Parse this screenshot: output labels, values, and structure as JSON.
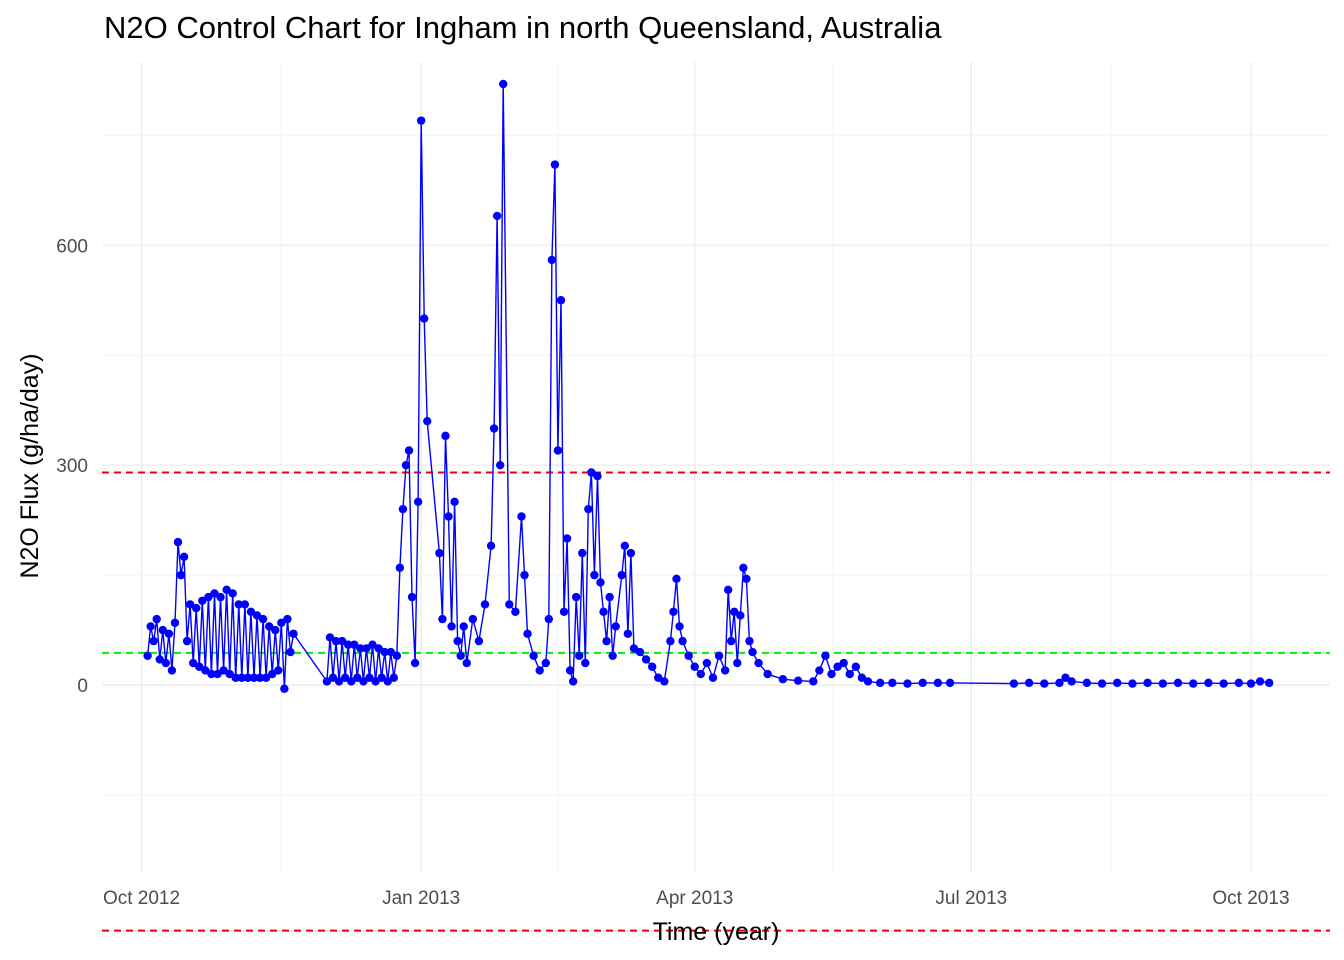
{
  "chart_data": {
    "type": "line",
    "title": "N2O Control Chart for Ingham in north Queensland, Australia",
    "xlabel": "Time (year)",
    "ylabel": "N2O Flux (g/ha/day)",
    "x_ticks": [
      {
        "date": "2012-10-01",
        "label": "Oct 2012"
      },
      {
        "date": "2013-01-01",
        "label": "Jan 2013"
      },
      {
        "date": "2013-04-01",
        "label": "Apr 2013"
      },
      {
        "date": "2013-07-01",
        "label": "Jul 2013"
      },
      {
        "date": "2013-10-01",
        "label": "Oct 2013"
      }
    ],
    "y_ticks": [
      0,
      300,
      600
    ],
    "xlim": [
      "2012-09-18",
      "2013-10-27"
    ],
    "ylim": [
      -255,
      850
    ],
    "grid": true,
    "series": [
      {
        "color": "#0000ff",
        "marker": "circle",
        "points": [
          [
            "2012-10-03",
            40
          ],
          [
            "2012-10-04",
            80
          ],
          [
            "2012-10-05",
            60
          ],
          [
            "2012-10-06",
            90
          ],
          [
            "2012-10-07",
            35
          ],
          [
            "2012-10-08",
            75
          ],
          [
            "2012-10-09",
            30
          ],
          [
            "2012-10-10",
            70
          ],
          [
            "2012-10-11",
            20
          ],
          [
            "2012-10-12",
            85
          ],
          [
            "2012-10-13",
            195
          ],
          [
            "2012-10-14",
            150
          ],
          [
            "2012-10-15",
            175
          ],
          [
            "2012-10-16",
            60
          ],
          [
            "2012-10-17",
            110
          ],
          [
            "2012-10-18",
            30
          ],
          [
            "2012-10-19",
            105
          ],
          [
            "2012-10-20",
            25
          ],
          [
            "2012-10-21",
            115
          ],
          [
            "2012-10-22",
            20
          ],
          [
            "2012-10-23",
            120
          ],
          [
            "2012-10-24",
            15
          ],
          [
            "2012-10-25",
            125
          ],
          [
            "2012-10-26",
            15
          ],
          [
            "2012-10-27",
            120
          ],
          [
            "2012-10-28",
            20
          ],
          [
            "2012-10-29",
            130
          ],
          [
            "2012-10-30",
            15
          ],
          [
            "2012-10-31",
            125
          ],
          [
            "2012-11-01",
            10
          ],
          [
            "2012-11-02",
            110
          ],
          [
            "2012-11-03",
            10
          ],
          [
            "2012-11-04",
            110
          ],
          [
            "2012-11-05",
            10
          ],
          [
            "2012-11-06",
            100
          ],
          [
            "2012-11-07",
            10
          ],
          [
            "2012-11-08",
            95
          ],
          [
            "2012-11-09",
            10
          ],
          [
            "2012-11-10",
            90
          ],
          [
            "2012-11-11",
            10
          ],
          [
            "2012-11-12",
            80
          ],
          [
            "2012-11-13",
            15
          ],
          [
            "2012-11-14",
            75
          ],
          [
            "2012-11-15",
            20
          ],
          [
            "2012-11-16",
            85
          ],
          [
            "2012-11-17",
            -5
          ],
          [
            "2012-11-18",
            90
          ],
          [
            "2012-11-19",
            45
          ],
          [
            "2012-11-20",
            70
          ],
          [
            "2012-12-01",
            5
          ],
          [
            "2012-12-02",
            65
          ],
          [
            "2012-12-03",
            10
          ],
          [
            "2012-12-04",
            60
          ],
          [
            "2012-12-05",
            5
          ],
          [
            "2012-12-06",
            60
          ],
          [
            "2012-12-07",
            10
          ],
          [
            "2012-12-08",
            55
          ],
          [
            "2012-12-09",
            5
          ],
          [
            "2012-12-10",
            55
          ],
          [
            "2012-12-11",
            10
          ],
          [
            "2012-12-12",
            50
          ],
          [
            "2012-12-13",
            5
          ],
          [
            "2012-12-14",
            50
          ],
          [
            "2012-12-15",
            10
          ],
          [
            "2012-12-16",
            55
          ],
          [
            "2012-12-17",
            5
          ],
          [
            "2012-12-18",
            50
          ],
          [
            "2012-12-19",
            10
          ],
          [
            "2012-12-20",
            45
          ],
          [
            "2012-12-21",
            5
          ],
          [
            "2012-12-22",
            45
          ],
          [
            "2012-12-23",
            10
          ],
          [
            "2012-12-24",
            40
          ],
          [
            "2012-12-25",
            160
          ],
          [
            "2012-12-26",
            240
          ],
          [
            "2012-12-27",
            300
          ],
          [
            "2012-12-28",
            320
          ],
          [
            "2012-12-29",
            120
          ],
          [
            "2012-12-30",
            30
          ],
          [
            "2012-12-31",
            250
          ],
          [
            "2013-01-01",
            770
          ],
          [
            "2013-01-02",
            500
          ],
          [
            "2013-01-03",
            360
          ],
          [
            "2013-01-07",
            180
          ],
          [
            "2013-01-08",
            90
          ],
          [
            "2013-01-09",
            340
          ],
          [
            "2013-01-10",
            230
          ],
          [
            "2013-01-11",
            80
          ],
          [
            "2013-01-12",
            250
          ],
          [
            "2013-01-13",
            60
          ],
          [
            "2013-01-14",
            40
          ],
          [
            "2013-01-15",
            80
          ],
          [
            "2013-01-16",
            30
          ],
          [
            "2013-01-18",
            90
          ],
          [
            "2013-01-20",
            60
          ],
          [
            "2013-01-22",
            110
          ],
          [
            "2013-01-24",
            190
          ],
          [
            "2013-01-25",
            350
          ],
          [
            "2013-01-26",
            640
          ],
          [
            "2013-01-27",
            300
          ],
          [
            "2013-01-28",
            820
          ],
          [
            "2013-01-30",
            110
          ],
          [
            "2013-02-01",
            100
          ],
          [
            "2013-02-03",
            230
          ],
          [
            "2013-02-04",
            150
          ],
          [
            "2013-02-05",
            70
          ],
          [
            "2013-02-07",
            40
          ],
          [
            "2013-02-09",
            20
          ],
          [
            "2013-02-11",
            30
          ],
          [
            "2013-02-12",
            90
          ],
          [
            "2013-02-13",
            580
          ],
          [
            "2013-02-14",
            710
          ],
          [
            "2013-02-15",
            320
          ],
          [
            "2013-02-16",
            525
          ],
          [
            "2013-02-17",
            100
          ],
          [
            "2013-02-18",
            200
          ],
          [
            "2013-02-19",
            20
          ],
          [
            "2013-02-20",
            5
          ],
          [
            "2013-02-21",
            120
          ],
          [
            "2013-02-22",
            40
          ],
          [
            "2013-02-23",
            180
          ],
          [
            "2013-02-24",
            30
          ],
          [
            "2013-02-25",
            240
          ],
          [
            "2013-02-26",
            290
          ],
          [
            "2013-02-27",
            150
          ],
          [
            "2013-02-28",
            285
          ],
          [
            "2013-03-01",
            140
          ],
          [
            "2013-03-02",
            100
          ],
          [
            "2013-03-03",
            60
          ],
          [
            "2013-03-04",
            120
          ],
          [
            "2013-03-05",
            40
          ],
          [
            "2013-03-06",
            80
          ],
          [
            "2013-03-08",
            150
          ],
          [
            "2013-03-09",
            190
          ],
          [
            "2013-03-10",
            70
          ],
          [
            "2013-03-11",
            180
          ],
          [
            "2013-03-12",
            50
          ],
          [
            "2013-03-14",
            45
          ],
          [
            "2013-03-16",
            35
          ],
          [
            "2013-03-18",
            25
          ],
          [
            "2013-03-20",
            10
          ],
          [
            "2013-03-22",
            5
          ],
          [
            "2013-03-24",
            60
          ],
          [
            "2013-03-25",
            100
          ],
          [
            "2013-03-26",
            145
          ],
          [
            "2013-03-27",
            80
          ],
          [
            "2013-03-28",
            60
          ],
          [
            "2013-03-30",
            40
          ],
          [
            "2013-04-01",
            25
          ],
          [
            "2013-04-03",
            15
          ],
          [
            "2013-04-05",
            30
          ],
          [
            "2013-04-07",
            10
          ],
          [
            "2013-04-09",
            40
          ],
          [
            "2013-04-11",
            20
          ],
          [
            "2013-04-12",
            130
          ],
          [
            "2013-04-13",
            60
          ],
          [
            "2013-04-14",
            100
          ],
          [
            "2013-04-15",
            30
          ],
          [
            "2013-04-16",
            95
          ],
          [
            "2013-04-17",
            160
          ],
          [
            "2013-04-18",
            145
          ],
          [
            "2013-04-19",
            60
          ],
          [
            "2013-04-20",
            45
          ],
          [
            "2013-04-22",
            30
          ],
          [
            "2013-04-25",
            15
          ],
          [
            "2013-04-30",
            8
          ],
          [
            "2013-05-05",
            6
          ],
          [
            "2013-05-10",
            5
          ],
          [
            "2013-05-12",
            20
          ],
          [
            "2013-05-14",
            40
          ],
          [
            "2013-05-16",
            15
          ],
          [
            "2013-05-18",
            25
          ],
          [
            "2013-05-20",
            30
          ],
          [
            "2013-05-22",
            15
          ],
          [
            "2013-05-24",
            25
          ],
          [
            "2013-05-26",
            10
          ],
          [
            "2013-05-28",
            5
          ],
          [
            "2013-06-01",
            3
          ],
          [
            "2013-06-05",
            3
          ],
          [
            "2013-06-10",
            2
          ],
          [
            "2013-06-15",
            3
          ],
          [
            "2013-06-20",
            3
          ],
          [
            "2013-06-24",
            3
          ],
          [
            "2013-07-15",
            2
          ],
          [
            "2013-07-20",
            3
          ],
          [
            "2013-07-25",
            2
          ],
          [
            "2013-07-30",
            3
          ],
          [
            "2013-08-01",
            10
          ],
          [
            "2013-08-03",
            5
          ],
          [
            "2013-08-08",
            3
          ],
          [
            "2013-08-13",
            2
          ],
          [
            "2013-08-18",
            3
          ],
          [
            "2013-08-23",
            2
          ],
          [
            "2013-08-28",
            3
          ],
          [
            "2013-09-02",
            2
          ],
          [
            "2013-09-07",
            3
          ],
          [
            "2013-09-12",
            2
          ],
          [
            "2013-09-17",
            3
          ],
          [
            "2013-09-22",
            2
          ],
          [
            "2013-09-27",
            3
          ],
          [
            "2013-10-01",
            2
          ],
          [
            "2013-10-04",
            5
          ],
          [
            "2013-10-07",
            3
          ]
        ]
      }
    ],
    "reference_lines": [
      {
        "y": 290,
        "color": "#ee0000",
        "style": "dashed"
      },
      {
        "y": 44,
        "color": "#00ee00",
        "style": "dashed"
      },
      {
        "y": -335,
        "color": "#ee0000",
        "style": "dashed"
      }
    ]
  }
}
